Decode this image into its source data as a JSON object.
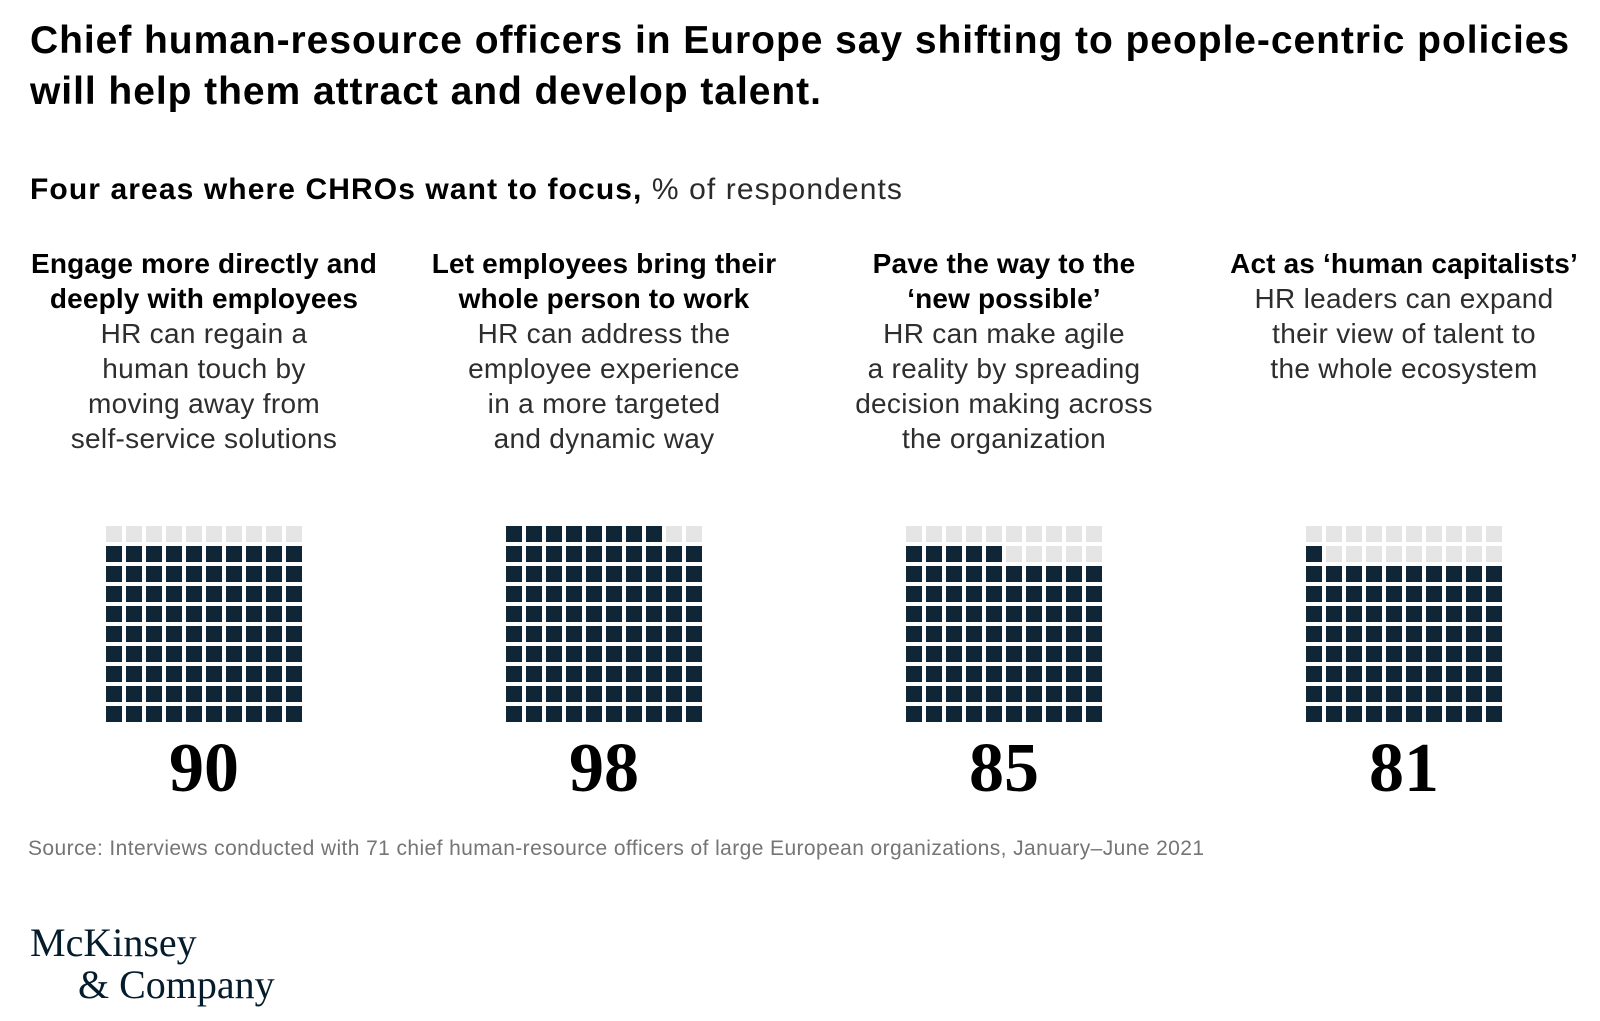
{
  "title": "Chief human-resource officers in Europe say shifting to people-centric policies will help them attract and develop talent.",
  "subtitle": {
    "bold": "Four areas where CHROs want to focus,",
    "unit": " % of respondents"
  },
  "chart_data": {
    "type": "waffle",
    "grid": {
      "rows": 10,
      "cols": 10
    },
    "unit": "% of respondents",
    "categories": [
      "Engage more directly and deeply with employees",
      "Let employees bring their whole person to work",
      "Pave the way to the ‘new possible’",
      "Act as ‘human capitalists’"
    ],
    "values": [
      90,
      98,
      85,
      81
    ],
    "descriptions": [
      "HR can regain a human touch by moving away from self-service solutions",
      "HR can address the employee experience in a more targeted and dynamic way",
      "HR can make agile a reality by spreading decision making across the organization",
      "HR leaders can expand their view of talent to the whole ecosystem"
    ],
    "filled_color": "#0f2636",
    "empty_color": "#e5e5e5",
    "fill_origin": "bottom-left"
  },
  "columns": [
    {
      "heading": "Engage more directly and\ndeeply with employees",
      "body": "HR can regain a\nhuman touch by\nmoving away from\nself-service solutions",
      "value": 90,
      "value_label": "90"
    },
    {
      "heading": "Let employees bring their\nwhole person to work",
      "body": "HR can address the\nemployee experience\nin a more targeted\nand dynamic way",
      "value": 98,
      "value_label": "98"
    },
    {
      "heading": "Pave the way to the\n‘new possible’",
      "body": "HR can make agile\na reality by spreading\ndecision making across\nthe organization",
      "value": 85,
      "value_label": "85"
    },
    {
      "heading": "Act as ‘human capitalists’",
      "body": "HR leaders can expand\ntheir view of talent to\nthe whole ecosystem",
      "value": 81,
      "value_label": "81"
    }
  ],
  "source": "Source: Interviews conducted with 71 chief human-resource officers of large European organizations, January–June 2021",
  "logo": {
    "line1": "McKinsey",
    "line2": "& Company"
  }
}
